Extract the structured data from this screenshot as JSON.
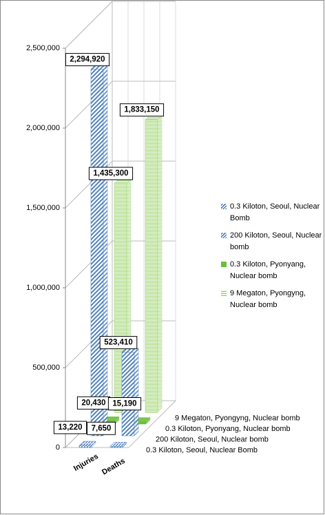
{
  "chart_data": {
    "type": "bar3d",
    "categories": [
      "Injuries",
      "Deaths"
    ],
    "series": [
      {
        "name": "0.3 Kiloton, Seoul, Nuclear Bomb",
        "color": "#4f81bd",
        "pattern": "dense-diagonal",
        "values": [
          13220,
          7650
        ],
        "value_labels": [
          "13,220",
          "7,650"
        ]
      },
      {
        "name": "200 Kiloton, Seoul, Nuclear bomb",
        "color": "#4f81bd",
        "pattern": "diagonal",
        "values": [
          2294920,
          523410
        ],
        "value_labels": [
          "2,294,920",
          "523,410"
        ]
      },
      {
        "name": "0.3 Kiloton, Pyonyang, Nuclear bomb",
        "color": "#6cbf3c",
        "pattern": "solid",
        "values": [
          20430,
          15190
        ],
        "value_labels": [
          "20,430",
          "15,190"
        ]
      },
      {
        "name": "9 Megaton, Pyongyng, Nuclear bomb",
        "color": "#9bd46b",
        "pattern": "horizontal",
        "values": [
          1435300,
          1833150
        ],
        "value_labels": [
          "1,435,300",
          "1,833,150"
        ]
      }
    ],
    "ylim": [
      0,
      2500000
    ],
    "yticks": [
      0,
      {
        "value": 500000,
        "label": "500,000"
      },
      {
        "value": 1000000,
        "label": "1,000,000"
      },
      {
        "value": 1500000,
        "label": "1,500,000"
      },
      {
        "value": 2000000,
        "label": "2,000,000"
      },
      {
        "value": 2500000,
        "label": "2,500,000"
      }
    ],
    "grid": true,
    "legend": "right"
  }
}
